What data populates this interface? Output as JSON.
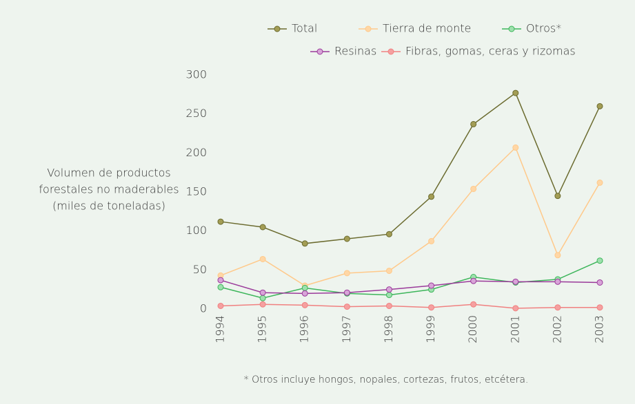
{
  "chart_data": {
    "type": "line",
    "y_label": [
      "Volumen de productos",
      "forestales no maderables",
      "(miles de toneladas)"
    ],
    "footnote": "* Otros incluye hongos, nopales, cortezas, frutos, etcétera.",
    "categories": [
      "1994",
      "1995",
      "1996",
      "1997",
      "1998",
      "1999",
      "2000",
      "2001",
      "2002",
      "2003"
    ],
    "series": [
      {
        "name": "Total",
        "color": "#6b6b2f",
        "marker_color": "#a39d55",
        "values": [
          112,
          105,
          84,
          90,
          96,
          144,
          237,
          277,
          145,
          260
        ]
      },
      {
        "name": "Tierra de monte",
        "color": "#ffc98a",
        "marker_color": "#ffd7a6",
        "values": [
          43,
          64,
          30,
          46,
          49,
          87,
          154,
          207,
          69,
          162
        ]
      },
      {
        "name": "Otros*",
        "color": "#3cb55a",
        "marker_color": "#9ee0ad",
        "values": [
          28,
          14,
          27,
          20,
          18,
          25,
          41,
          34,
          38,
          62
        ]
      },
      {
        "name": "Resinas",
        "color": "#9a3a9a",
        "marker_color": "#d8a4d8",
        "values": [
          37,
          21,
          20,
          21,
          25,
          30,
          36,
          35,
          35,
          34
        ]
      },
      {
        "name": "Fibras, gomas, ceras y rizomas",
        "color": "#f08080",
        "marker_color": "#f5a0a0",
        "values": [
          4,
          6,
          5,
          3,
          4,
          2,
          6,
          1,
          2,
          2
        ]
      }
    ],
    "ylim": [
      0,
      300
    ],
    "yticks": [
      0,
      50,
      100,
      150,
      200,
      250,
      300
    ],
    "grid": false
  }
}
